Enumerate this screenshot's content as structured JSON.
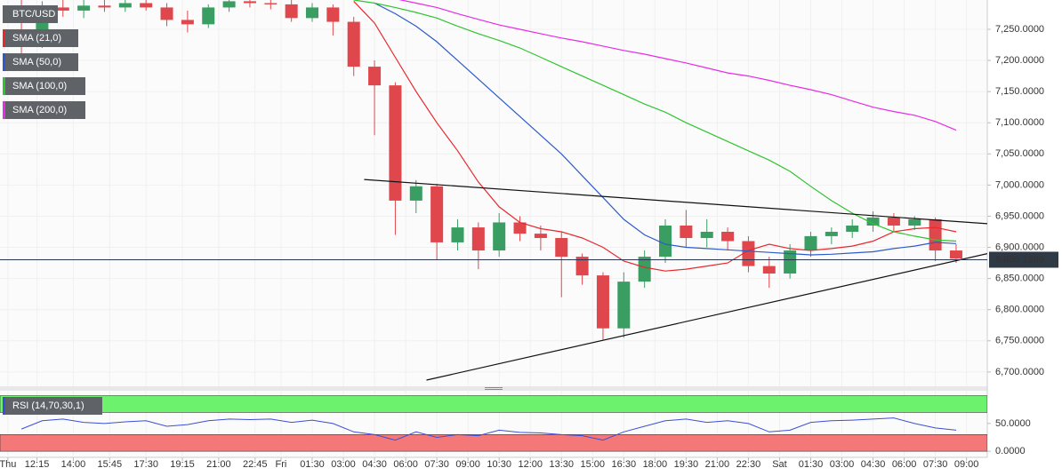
{
  "chart_data": [
    {
      "type": "candlestick",
      "name": "BTC/USD",
      "x": [
        11,
        12,
        13,
        14,
        15,
        16,
        17,
        18,
        19,
        20,
        21,
        22,
        23,
        24,
        25,
        26,
        27,
        28,
        29,
        30,
        31,
        32,
        33,
        34,
        35,
        36,
        37,
        38,
        39,
        40,
        41,
        42,
        43,
        44,
        45,
        46,
        47,
        48,
        49,
        50,
        51,
        52,
        53,
        54,
        55,
        56
      ],
      "open": [
        7250,
        7230,
        7285,
        7280,
        7288,
        7285,
        7292,
        7285,
        7265,
        7258,
        7285,
        7295,
        7292,
        7290,
        7268,
        7285,
        7262,
        7190,
        7160,
        6975,
        6998,
        6908,
        6932,
        6895,
        6940,
        6922,
        6915,
        6885,
        6855,
        6770,
        6845,
        6885,
        6935,
        6915,
        6925,
        6910,
        6870,
        6858,
        6895,
        6918,
        6925,
        6935,
        6948,
        6935,
        6945,
        6895
      ],
      "high": [
        7300,
        7295,
        7300,
        7298,
        7300,
        7300,
        7300,
        7292,
        7280,
        7290,
        7300,
        7300,
        7300,
        7298,
        7292,
        7290,
        7270,
        7200,
        7165,
        7008,
        7002,
        6945,
        6940,
        6955,
        6950,
        6935,
        6925,
        6890,
        6860,
        6860,
        6895,
        6945,
        6960,
        6945,
        6932,
        6918,
        6885,
        6905,
        6925,
        6932,
        6945,
        6958,
        6955,
        6950,
        6948,
        6905
      ],
      "low": [
        7205,
        7220,
        7270,
        7268,
        7278,
        7278,
        7280,
        7255,
        7245,
        7252,
        7278,
        7285,
        7282,
        7262,
        7262,
        7240,
        7175,
        7080,
        6920,
        6955,
        6880,
        6895,
        6865,
        6885,
        6910,
        6895,
        6820,
        6840,
        6752,
        6755,
        6835,
        6875,
        6900,
        6900,
        6895,
        6860,
        6835,
        6850,
        6885,
        6905,
        6915,
        6925,
        6925,
        6928,
        6878,
        6875
      ],
      "close": [
        7230,
        7285,
        7280,
        7288,
        7285,
        7292,
        7285,
        7265,
        7258,
        7285,
        7295,
        7292,
        7290,
        7268,
        7285,
        7262,
        7190,
        7160,
        6975,
        6998,
        6908,
        6932,
        6895,
        6940,
        6922,
        6915,
        6885,
        6855,
        6770,
        6845,
        6885,
        6935,
        6915,
        6925,
        6910,
        6870,
        6858,
        6895,
        6918,
        6925,
        6935,
        6948,
        6935,
        6945,
        6895,
        6882
      ],
      "up_color": "#3a9e63",
      "down_color": "#e0474c",
      "xlim": [
        10.47,
        58
      ],
      "ylim": [
        6677,
        7297
      ],
      "yticks": [
        {
          "value": 6700,
          "label": "6,700.0000"
        },
        {
          "value": 6750,
          "label": "6,750.0000"
        },
        {
          "value": 6800,
          "label": "6,800.0000"
        },
        {
          "value": 6850,
          "label": "6,850.0000"
        },
        {
          "value": 6900,
          "label": "6,900.0000"
        },
        {
          "value": 6950,
          "label": "6,950.0000"
        },
        {
          "value": 7000,
          "label": "7,000.0000"
        },
        {
          "value": 7050,
          "label": "7,050.0000"
        },
        {
          "value": 7100,
          "label": "7,100.0000"
        },
        {
          "value": 7150,
          "label": "7,150.0000"
        },
        {
          "value": 7200,
          "label": "7,200.0000"
        },
        {
          "value": 7250,
          "label": "7,250.0000"
        }
      ],
      "sma": [
        {
          "name": "SMA (21,0)",
          "color": "#e8282d",
          "values": [
            null,
            null,
            null,
            null,
            null,
            null,
            null,
            null,
            null,
            null,
            null,
            null,
            null,
            null,
            null,
            null,
            7295,
            7260,
            7205,
            7150,
            7100,
            7055,
            7005,
            6965,
            6940,
            6930,
            6925,
            6915,
            6900,
            6878,
            6868,
            6862,
            6865,
            6870,
            6875,
            6895,
            6905,
            6898,
            6895,
            6898,
            6902,
            6910,
            6925,
            6930,
            6932,
            6925
          ]
        },
        {
          "name": "SMA (50,0)",
          "color": "#2c5bc9",
          "values": [
            null,
            null,
            null,
            null,
            null,
            null,
            null,
            null,
            null,
            null,
            null,
            null,
            null,
            null,
            null,
            null,
            null,
            7292,
            7275,
            7255,
            7230,
            7200,
            7170,
            7140,
            7110,
            7080,
            7050,
            7015,
            6980,
            6945,
            6920,
            6905,
            6900,
            6898,
            6896,
            6894,
            6892,
            6890,
            6888,
            6889,
            6891,
            6893,
            6898,
            6902,
            6908,
            6906
          ]
        },
        {
          "name": "SMA (100,0)",
          "color": "#2fc42f",
          "values": [
            null,
            null,
            null,
            null,
            null,
            null,
            null,
            null,
            null,
            null,
            null,
            null,
            null,
            null,
            null,
            null,
            7297,
            7292,
            7285,
            7277,
            7268,
            7255,
            7243,
            7232,
            7220,
            7205,
            7190,
            7175,
            7160,
            7145,
            7130,
            7117,
            7100,
            7085,
            7070,
            7055,
            7040,
            7022,
            6998,
            6975,
            6955,
            6938,
            6925,
            6918,
            6912,
            6910
          ]
        },
        {
          "name": "SMA (200,0)",
          "color": "#e62ce6",
          "values": [
            null,
            null,
            null,
            null,
            null,
            null,
            null,
            null,
            null,
            null,
            null,
            null,
            null,
            null,
            null,
            null,
            null,
            null,
            7299,
            7292,
            7285,
            7275,
            7266,
            7257,
            7250,
            7243,
            7236,
            7230,
            7223,
            7216,
            7210,
            7203,
            7196,
            7188,
            7180,
            7175,
            7168,
            7160,
            7153,
            7145,
            7135,
            7125,
            7118,
            7112,
            7102,
            7088
          ]
        }
      ],
      "trendlines": [
        {
          "x": [
            28,
            58
          ],
          "values": [
            7009,
            6938
          ]
        },
        {
          "x": [
            31,
            58
          ],
          "values": [
            6687,
            6890
          ]
        }
      ],
      "last_price": {
        "value": 6880.1289,
        "label": "6,880.1289"
      }
    },
    {
      "type": "line",
      "name": "RSI (14,70,30,1)",
      "color": "#3a4fd6",
      "values": [
        40,
        55,
        58,
        52,
        50,
        53,
        55,
        45,
        48,
        55,
        58,
        57,
        58,
        52,
        56,
        50,
        35,
        30,
        20,
        35,
        25,
        30,
        28,
        38,
        34,
        33,
        30,
        28,
        20,
        35,
        45,
        55,
        58,
        52,
        55,
        50,
        35,
        38,
        52,
        55,
        56,
        58,
        60,
        50,
        42,
        38
      ],
      "xlim": [
        10.47,
        58
      ],
      "ylim": [
        -11,
        109
      ],
      "yticks": [
        {
          "value": 50,
          "label": "50.0000"
        },
        {
          "value": 0,
          "label": "0.0000"
        }
      ],
      "bands": [
        {
          "range": [
            70,
            100
          ],
          "color": "#6cf26c"
        },
        {
          "range": [
            0,
            30
          ],
          "color": "#f47878"
        }
      ],
      "xticks": [
        {
          "value": 10.85,
          "label": "Thu"
        },
        {
          "value": 12.25,
          "label": "12:15"
        },
        {
          "value": 14,
          "label": "14:00"
        },
        {
          "value": 15.75,
          "label": "15:45"
        },
        {
          "value": 17.5,
          "label": "17:30"
        },
        {
          "value": 19.25,
          "label": "19:15"
        },
        {
          "value": 21,
          "label": "21:00"
        },
        {
          "value": 22.75,
          "label": "22:45"
        },
        {
          "value": 24,
          "label": "Fri"
        },
        {
          "value": 25.5,
          "label": "01:30"
        },
        {
          "value": 27,
          "label": "03:00"
        },
        {
          "value": 28.5,
          "label": "04:30"
        },
        {
          "value": 30,
          "label": "06:00"
        },
        {
          "value": 31.5,
          "label": "07:30"
        },
        {
          "value": 33,
          "label": "09:00"
        },
        {
          "value": 34.5,
          "label": "10:30"
        },
        {
          "value": 36,
          "label": "12:00"
        },
        {
          "value": 37.5,
          "label": "13:30"
        },
        {
          "value": 39,
          "label": "15:00"
        },
        {
          "value": 40.5,
          "label": "16:30"
        },
        {
          "value": 42,
          "label": "18:00"
        },
        {
          "value": 43.5,
          "label": "19:30"
        },
        {
          "value": 45,
          "label": "21:00"
        },
        {
          "value": 46.5,
          "label": "22:30"
        },
        {
          "value": 48,
          "label": "Sat"
        },
        {
          "value": 49.5,
          "label": "01:30"
        },
        {
          "value": 51,
          "label": "03:00"
        },
        {
          "value": 52.5,
          "label": "04:30"
        },
        {
          "value": 54,
          "label": "06:00"
        },
        {
          "value": 55.5,
          "label": "07:30"
        },
        {
          "value": 57,
          "label": "09:00"
        }
      ]
    }
  ]
}
